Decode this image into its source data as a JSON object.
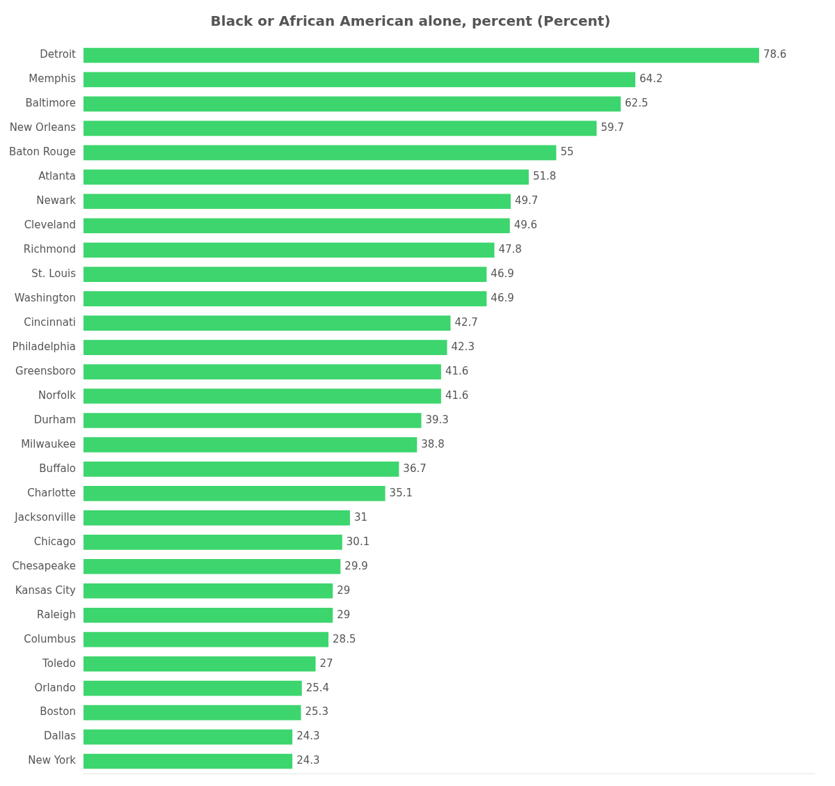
{
  "chart_data": {
    "type": "bar",
    "orientation": "horizontal",
    "title": "Black or African American alone, percent (Percent)",
    "categories": [
      "Detroit",
      "Memphis",
      "Baltimore",
      "New Orleans",
      "Baton Rouge",
      "Atlanta",
      "Newark",
      "Cleveland",
      "Richmond",
      "St. Louis",
      "Washington",
      "Cincinnati",
      "Philadelphia",
      "Greensboro",
      "Norfolk",
      "Durham",
      "Milwaukee",
      "Buffalo",
      "Charlotte",
      "Jacksonville",
      "Chicago",
      "Chesapeake",
      "Kansas City",
      "Raleigh",
      "Columbus",
      "Toledo",
      "Orlando",
      "Boston",
      "Dallas",
      "New York"
    ],
    "values": [
      78.6,
      64.2,
      62.5,
      59.7,
      55.0,
      51.8,
      49.7,
      49.6,
      47.8,
      46.9,
      46.9,
      42.7,
      42.3,
      41.6,
      41.6,
      39.3,
      38.8,
      36.7,
      35.1,
      31.0,
      30.1,
      29.9,
      29.0,
      29.0,
      28.5,
      27.0,
      25.4,
      25.3,
      24.3,
      24.3
    ],
    "color": "#3DD56D",
    "xlim": [
      0,
      85
    ],
    "grid": false,
    "data_labels": true,
    "tick_labels": "y"
  }
}
